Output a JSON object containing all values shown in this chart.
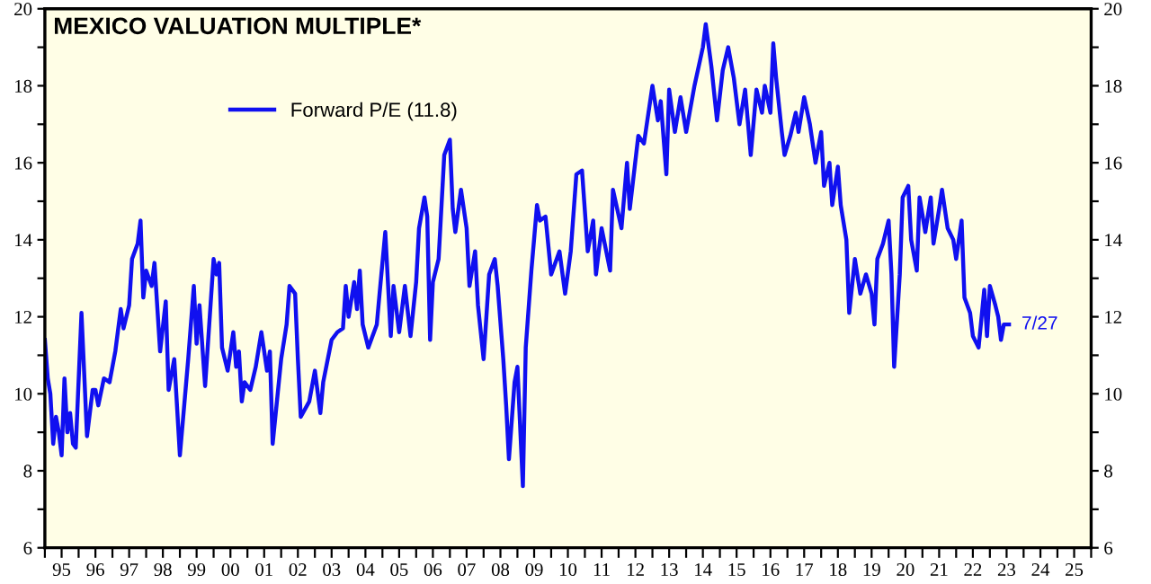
{
  "chart_data": {
    "type": "line",
    "title": "MEXICO VALUATION MULTIPLE*",
    "series": [
      {
        "name": "Forward P/E (11.8)",
        "color": "#1010f0",
        "x": [
          "1995-01",
          "1995-02",
          "1995-03",
          "1995-04",
          "1995-05",
          "1995-06",
          "1995-07",
          "1995-08",
          "1995-09",
          "1995-10",
          "1995-11",
          "1995-12",
          "1996-02",
          "1996-04",
          "1996-06",
          "1996-07",
          "1996-08",
          "1996-10",
          "1996-12",
          "1997-02",
          "1997-04",
          "1997-05",
          "1997-07",
          "1997-08",
          "1997-10",
          "1997-11",
          "1997-12",
          "1998-01",
          "1998-03",
          "1998-04",
          "1998-06",
          "1998-08",
          "1998-09",
          "1998-11",
          "1999-01",
          "1999-04",
          "1999-06",
          "1999-07",
          "1999-08",
          "1999-10",
          "2000-01",
          "2000-02",
          "2000-03",
          "2000-04",
          "2000-06",
          "2000-08",
          "2000-09",
          "2000-10",
          "2000-11",
          "2000-12",
          "2001-02",
          "2001-04",
          "2001-06",
          "2001-08",
          "2001-09",
          "2001-10",
          "2002-01",
          "2002-03",
          "2002-04",
          "2002-06",
          "2002-07",
          "2002-08",
          "2002-11",
          "2003-01",
          "2003-03",
          "2003-04",
          "2003-07",
          "2003-09",
          "2003-11",
          "2003-12",
          "2004-01",
          "2004-03",
          "2004-04",
          "2004-05",
          "2004-06",
          "2004-08",
          "2004-11",
          "2004-12",
          "2005-02",
          "2005-04",
          "2005-05",
          "2005-07",
          "2005-09",
          "2005-11",
          "2006-01",
          "2006-02",
          "2006-04",
          "2006-05",
          "2006-06",
          "2006-07",
          "2006-09",
          "2006-11",
          "2007-01",
          "2007-02",
          "2007-03",
          "2007-05",
          "2007-07",
          "2007-08",
          "2007-10",
          "2007-11",
          "2008-01",
          "2008-03",
          "2008-05",
          "2008-06",
          "2008-08",
          "2008-09",
          "2008-10",
          "2008-12",
          "2009-01",
          "2009-03",
          "2009-04",
          "2009-06",
          "2009-08",
          "2009-09",
          "2009-11",
          "2010-01",
          "2010-04",
          "2010-06",
          "2010-08",
          "2010-10",
          "2010-12",
          "2011-02",
          "2011-04",
          "2011-05",
          "2011-07",
          "2011-10",
          "2011-11",
          "2012-02",
          "2012-04",
          "2012-05",
          "2012-08",
          "2012-10",
          "2013-01",
          "2013-03",
          "2013-04",
          "2013-06",
          "2013-07",
          "2013-09",
          "2013-11",
          "2014-01",
          "2014-04",
          "2014-07",
          "2014-08",
          "2014-10",
          "2014-12",
          "2015-02",
          "2015-04",
          "2015-06",
          "2015-08",
          "2015-10",
          "2015-12",
          "2016-02",
          "2016-04",
          "2016-05",
          "2016-07",
          "2016-08",
          "2016-09",
          "2016-11",
          "2016-12",
          "2017-02",
          "2017-04",
          "2017-05",
          "2017-07",
          "2017-09",
          "2017-11",
          "2018-01",
          "2018-02",
          "2018-04",
          "2018-05",
          "2018-07",
          "2018-08",
          "2018-10",
          "2018-11",
          "2019-01",
          "2019-03",
          "2019-05",
          "2019-07",
          "2019-08",
          "2019-09",
          "2019-11",
          "2020-01",
          "2020-02",
          "2020-03",
          "2020-05",
          "2020-06",
          "2020-08",
          "2020-09",
          "2020-11",
          "2020-12",
          "2021-02",
          "2021-04",
          "2021-05",
          "2021-07",
          "2021-08",
          "2021-10",
          "2021-12",
          "2022-01",
          "2022-03",
          "2022-04",
          "2022-06",
          "2022-07",
          "2022-09",
          "2022-11",
          "2022-12",
          "2023-01",
          "2023-03",
          "2023-04",
          "2023-05",
          "2023-06",
          "2023-07-27"
        ],
        "values": [
          11.4,
          10.4,
          10.0,
          8.7,
          9.4,
          9.0,
          8.4,
          10.4,
          9.0,
          9.5,
          8.7,
          8.6,
          12.1,
          8.9,
          10.1,
          10.1,
          9.7,
          10.4,
          10.3,
          11.1,
          12.2,
          11.7,
          12.3,
          13.5,
          13.9,
          14.5,
          12.5,
          13.2,
          12.8,
          13.4,
          11.1,
          12.4,
          10.1,
          10.9,
          8.4,
          10.9,
          12.8,
          11.3,
          12.3,
          10.2,
          13.5,
          13.1,
          13.4,
          11.2,
          10.6,
          11.6,
          10.7,
          11.1,
          9.8,
          10.3,
          10.1,
          10.7,
          11.6,
          10.6,
          11.1,
          8.7,
          10.9,
          11.8,
          12.8,
          12.6,
          10.9,
          9.4,
          9.8,
          10.6,
          9.5,
          10.3,
          11.4,
          11.6,
          11.7,
          12.8,
          12.0,
          12.9,
          12.2,
          13.2,
          11.8,
          11.2,
          11.8,
          12.6,
          14.2,
          11.5,
          12.8,
          11.6,
          12.8,
          11.5,
          12.9,
          14.3,
          15.1,
          14.6,
          11.4,
          12.9,
          13.5,
          16.2,
          16.6,
          14.8,
          14.2,
          15.3,
          14.3,
          12.8,
          13.7,
          12.3,
          10.9,
          13.1,
          13.5,
          12.8,
          10.9,
          9.7,
          8.3,
          10.3,
          10.7,
          7.6,
          11.2,
          13.2,
          14.9,
          14.5,
          14.6,
          13.1,
          13.7,
          12.6,
          13.7,
          15.7,
          15.8,
          13.7,
          14.5,
          13.1,
          14.3,
          13.2,
          15.3,
          14.3,
          16.0,
          14.8,
          16.7,
          16.5,
          18.0,
          17.1,
          17.6,
          15.7,
          17.9,
          16.8,
          17.7,
          16.8,
          18.0,
          19.0,
          19.6,
          18.5,
          17.1,
          18.4,
          19.0,
          18.2,
          17.0,
          17.9,
          16.2,
          17.9,
          17.3,
          18.0,
          17.3,
          19.1,
          18.2,
          16.8,
          16.2,
          16.7,
          17.3,
          16.8,
          17.7,
          17.0,
          16.0,
          16.8,
          15.4,
          16.0,
          14.9,
          15.9,
          14.9,
          14.0,
          12.1,
          13.5,
          12.6,
          13.1,
          12.6,
          11.8,
          13.5,
          13.9,
          14.5,
          13.1,
          10.7,
          13.1,
          15.1,
          15.4,
          14.0,
          13.2,
          15.1,
          14.2,
          15.1,
          13.9,
          14.8,
          15.3,
          14.3,
          14.0,
          13.5,
          14.5,
          12.5,
          12.1,
          11.5,
          11.2,
          12.7,
          11.5,
          12.8,
          12.3,
          12.0,
          11.4,
          11.8,
          11.8
        ]
      }
    ],
    "annotations": [
      {
        "text": "7/27",
        "x": "2023-07-27",
        "y": 11.8
      }
    ],
    "legend": "top left",
    "grid": false,
    "xlim": [
      "1995-01-01",
      "2026-01-01"
    ],
    "xticks": [
      {
        "value": "1995-01-01",
        "label": null
      },
      {
        "value": "1995-07-01",
        "label": "95"
      },
      {
        "value": "1996-01-01",
        "label": null
      },
      {
        "value": "1996-07-01",
        "label": "96"
      },
      {
        "value": "1997-01-01",
        "label": null
      },
      {
        "value": "1997-07-01",
        "label": "97"
      },
      {
        "value": "1998-01-01",
        "label": null
      },
      {
        "value": "1998-07-01",
        "label": "98"
      },
      {
        "value": "1999-01-01",
        "label": null
      },
      {
        "value": "1999-07-01",
        "label": "99"
      },
      {
        "value": "2000-01-01",
        "label": null
      },
      {
        "value": "2000-07-01",
        "label": "00"
      },
      {
        "value": "2001-01-01",
        "label": null
      },
      {
        "value": "2001-07-01",
        "label": "01"
      },
      {
        "value": "2002-01-01",
        "label": null
      },
      {
        "value": "2002-07-01",
        "label": "02"
      },
      {
        "value": "2003-01-01",
        "label": null
      },
      {
        "value": "2003-07-01",
        "label": "03"
      },
      {
        "value": "2004-01-01",
        "label": null
      },
      {
        "value": "2004-07-01",
        "label": "04"
      },
      {
        "value": "2005-01-01",
        "label": null
      },
      {
        "value": "2005-07-01",
        "label": "05"
      },
      {
        "value": "2006-01-01",
        "label": null
      },
      {
        "value": "2006-07-01",
        "label": "06"
      },
      {
        "value": "2007-01-01",
        "label": null
      },
      {
        "value": "2007-07-01",
        "label": "07"
      },
      {
        "value": "2008-01-01",
        "label": null
      },
      {
        "value": "2008-07-01",
        "label": "08"
      },
      {
        "value": "2009-01-01",
        "label": null
      },
      {
        "value": "2009-07-01",
        "label": "09"
      },
      {
        "value": "2010-01-01",
        "label": null
      },
      {
        "value": "2010-07-01",
        "label": "10"
      },
      {
        "value": "2011-01-01",
        "label": null
      },
      {
        "value": "2011-07-01",
        "label": "11"
      },
      {
        "value": "2012-01-01",
        "label": null
      },
      {
        "value": "2012-07-01",
        "label": "12"
      },
      {
        "value": "2013-01-01",
        "label": null
      },
      {
        "value": "2013-07-01",
        "label": "13"
      },
      {
        "value": "2014-01-01",
        "label": null
      },
      {
        "value": "2014-07-01",
        "label": "14"
      },
      {
        "value": "2015-01-01",
        "label": null
      },
      {
        "value": "2015-07-01",
        "label": "15"
      },
      {
        "value": "2016-01-01",
        "label": null
      },
      {
        "value": "2016-07-01",
        "label": "16"
      },
      {
        "value": "2017-01-01",
        "label": null
      },
      {
        "value": "2017-07-01",
        "label": "17"
      },
      {
        "value": "2018-01-01",
        "label": null
      },
      {
        "value": "2018-07-01",
        "label": "18"
      },
      {
        "value": "2019-01-01",
        "label": null
      },
      {
        "value": "2019-07-01",
        "label": "19"
      },
      {
        "value": "2020-01-01",
        "label": null
      },
      {
        "value": "2020-07-01",
        "label": "20"
      },
      {
        "value": "2021-01-01",
        "label": null
      },
      {
        "value": "2021-07-01",
        "label": "21"
      },
      {
        "value": "2022-01-01",
        "label": null
      },
      {
        "value": "2022-07-01",
        "label": "22"
      },
      {
        "value": "2023-01-01",
        "label": null
      },
      {
        "value": "2023-07-01",
        "label": "23"
      },
      {
        "value": "2024-01-01",
        "label": null
      },
      {
        "value": "2024-07-01",
        "label": "24"
      },
      {
        "value": "2025-01-01",
        "label": null
      },
      {
        "value": "2025-07-01",
        "label": "25"
      },
      {
        "value": "2026-01-01",
        "label": null
      }
    ],
    "ylim": [
      6,
      20
    ],
    "yticks": [
      6,
      {
        "value": 7,
        "label": null
      },
      8,
      {
        "value": 9,
        "label": null
      },
      10,
      {
        "value": 11,
        "label": null
      },
      12,
      {
        "value": 13,
        "label": null
      },
      14,
      {
        "value": 15,
        "label": null
      },
      16,
      {
        "value": 17,
        "label": null
      },
      18,
      {
        "value": 19,
        "label": null
      },
      20
    ],
    "y2lim": [
      6,
      20
    ],
    "y2ticks": [
      6,
      {
        "value": 7,
        "label": null
      },
      8,
      {
        "value": 9,
        "label": null
      },
      10,
      {
        "value": 11,
        "label": null
      },
      12,
      {
        "value": 13,
        "label": null
      },
      14,
      {
        "value": 15,
        "label": null
      },
      16,
      {
        "value": 17,
        "label": null
      },
      18,
      {
        "value": 19,
        "label": null
      },
      20
    ]
  }
}
